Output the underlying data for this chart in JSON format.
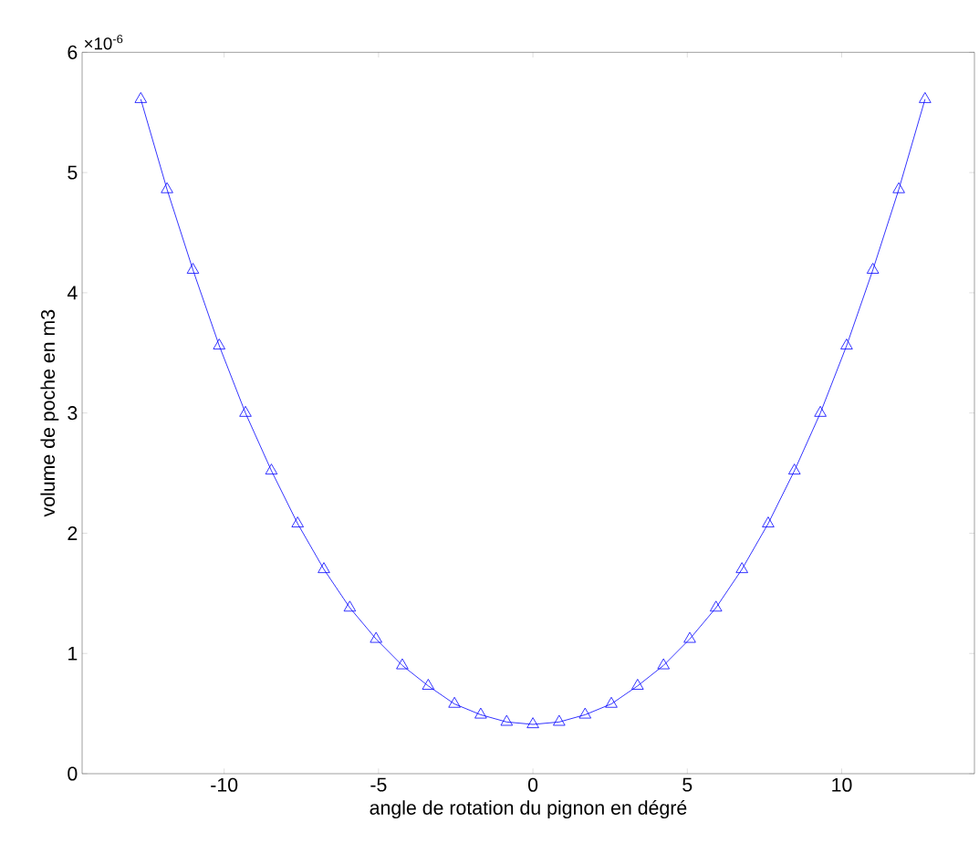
{
  "chart_data": {
    "type": "line",
    "xlabel": "angle de rotation du pignon en dégré",
    "ylabel": "volume de poche en m3",
    "annotations": [
      "×10$^{-6}$"
    ],
    "x": [
      -12.7,
      -11.85,
      -11.01,
      -10.16,
      -9.31,
      -8.47,
      -7.62,
      -6.77,
      -5.93,
      -5.08,
      -4.23,
      -3.39,
      -2.54,
      -1.69,
      -0.85,
      0,
      0.85,
      1.69,
      2.54,
      3.39,
      4.23,
      5.08,
      5.93,
      6.77,
      7.62,
      8.47,
      9.31,
      10.16,
      11.01,
      11.85,
      12.7
    ],
    "series": [
      {
        "color": "#0000ff",
        "values": [
          5.61,
          4.86,
          4.19,
          3.56,
          3.0,
          2.52,
          2.08,
          1.7,
          1.38,
          1.12,
          0.9,
          0.73,
          0.58,
          0.49,
          0.43,
          0.41,
          0.43,
          0.49,
          0.58,
          0.73,
          0.9,
          1.12,
          1.38,
          1.7,
          2.08,
          2.52,
          3.0,
          3.56,
          4.19,
          4.86,
          5.61
        ]
      }
    ],
    "xlim": [
      -14.6,
      14.3
    ],
    "ylim": [
      0,
      6
    ],
    "xticks": [
      -10,
      -5,
      0,
      5,
      10
    ],
    "yticks": [
      0,
      1,
      2,
      3,
      4,
      5,
      6
    ],
    "grid": false,
    "marker": "triangle",
    "line_style": "solid"
  }
}
